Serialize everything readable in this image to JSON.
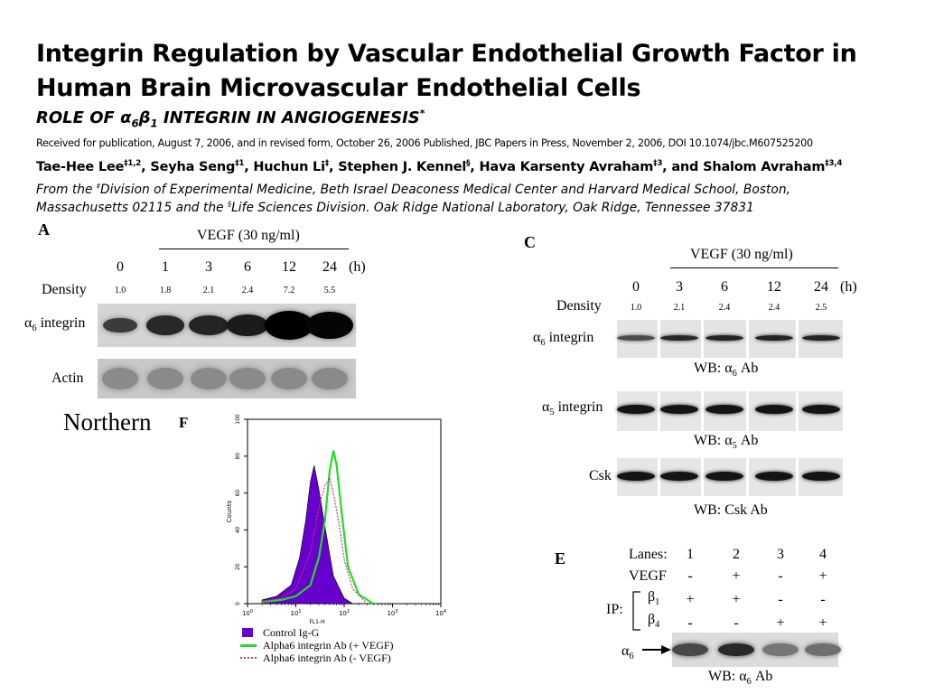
{
  "header": {
    "title_line1": "Integrin Regulation by Vascular Endothelial Growth Factor in",
    "title_line2": "Human Brain Microvascular Endothelial Cells",
    "subtitle_pre": "ROLE OF ",
    "subtitle_alpha": "α",
    "subtitle_alpha_sub": "6",
    "subtitle_beta": "β",
    "subtitle_beta_sub": "1",
    "subtitle_post": " INTEGRIN IN ANGIOGENESIS",
    "subtitle_mark": "*",
    "received": "Received for publication, August 7, 2006, and in revised form, October 26, 2006  Published, JBC Papers in Press, November 2, 2006, DOI 10.1074/jbc.M607525200",
    "authors": [
      {
        "name": "Tae-Hee Lee",
        "sup": "‡1,2",
        "sep": ", "
      },
      {
        "name": "Seyha Seng",
        "sup": "‡1",
        "sep": ", "
      },
      {
        "name": "Huchun Li",
        "sup": "‡",
        "sep": ", "
      },
      {
        "name": "Stephen J. Kennel",
        "sup": "§",
        "sep": ", "
      },
      {
        "name": "Hava Karsenty Avraham",
        "sup": "‡3",
        "sep": ", and "
      },
      {
        "name": "Shalom Avraham",
        "sup": "‡3,4",
        "sep": ""
      }
    ],
    "aff_line1_a": "From the ",
    "aff_line1_mark": "‡",
    "aff_line1_b": "Division of Experimental Medicine, Beth Israel Deaconess Medical Center and Harvard Medical School, Boston,",
    "aff_line2_a": "Massachusetts 02115 and the ",
    "aff_line2_mark": "§",
    "aff_line2_b": "Life Sciences Division. Oak Ridge National Laboratory, Oak Ridge, Tennessee 37831"
  },
  "panelA": {
    "label": "A",
    "treatment": "VEGF (30 ng/ml)",
    "times": [
      "0",
      "1",
      "3",
      "6",
      "12",
      "24"
    ],
    "unit": "(h)",
    "density_label": "Density",
    "densities": [
      "1.0",
      "1.8",
      "2.1",
      "2.4",
      "7.2",
      "5.5"
    ],
    "row1_label_alpha": "α",
    "row1_label_sub": "6",
    "row1_label_rest": " integrin",
    "row2_label": "Actin",
    "northern": "Northern",
    "band_darkness": [
      0.35,
      0.55,
      0.6,
      0.7,
      1.0,
      0.95
    ]
  },
  "panelC": {
    "label": "C",
    "treatment": "VEGF (30 ng/ml)",
    "times": [
      "0",
      "3",
      "6",
      "12",
      "24"
    ],
    "unit": "(h)",
    "density_label": "Density",
    "densities": [
      "1.0",
      "2.1",
      "2.4",
      "2.4",
      "2.5"
    ],
    "row1_label_alpha": "α",
    "row1_label_sub": "6",
    "row1_label_rest": " integrin",
    "wb1_pre": "WB: ",
    "wb1_alpha": "α",
    "wb1_sub": "6",
    "wb1_post": " Ab",
    "row2_label_alpha": "α",
    "row2_label_sub": "5",
    "row2_label_rest": " integrin",
    "wb2_pre": "WB: ",
    "wb2_alpha": "α",
    "wb2_sub": "5",
    "wb2_post": " Ab",
    "row3_label": "Csk",
    "wb3": "WB: Csk Ab"
  },
  "panelE": {
    "label": "E",
    "lanes_label": "Lanes:",
    "lanes": [
      "1",
      "2",
      "3",
      "4"
    ],
    "vegf_label": "VEGF",
    "vegf": [
      "-",
      "+",
      "-",
      "+"
    ],
    "ip_label": "IP:",
    "beta1_sym": "β",
    "beta1_sub": "1",
    "beta1": [
      "+",
      "+",
      "-",
      "-"
    ],
    "beta4_sym": "β",
    "beta4_sub": "4",
    "beta4": [
      "-",
      "-",
      "+",
      "+"
    ],
    "band_label_alpha": "α",
    "band_label_sub": "6",
    "wb_pre": "WB: ",
    "wb_alpha": "α",
    "wb_sub": "6",
    "wb_post": " Ab"
  },
  "panelF": {
    "label": "F",
    "ylabel": "Counts",
    "xlabel": "FL1-H",
    "yticks": [
      "0",
      "20",
      "40",
      "60",
      "80",
      "100"
    ],
    "xticks": [
      {
        "base": "10",
        "exp": "0"
      },
      {
        "base": "10",
        "exp": "1"
      },
      {
        "base": "10",
        "exp": "2"
      },
      {
        "base": "10",
        "exp": "3"
      },
      {
        "base": "10",
        "exp": "4"
      }
    ],
    "legend": [
      {
        "label": "Control Ig-G",
        "color": "#6600cc"
      },
      {
        "label": "Alpha6 integrin Ab (+ VEGF)",
        "color": "#22dd22"
      },
      {
        "label": "Alpha6 integrin Ab (- VEGF)",
        "color": "#cc3377"
      }
    ]
  },
  "chart_data": {
    "type": "area",
    "xscale": "log",
    "xlim": [
      1,
      10000
    ],
    "ylim": [
      0,
      100
    ],
    "xlabel": "FL1-H",
    "ylabel": "Counts",
    "series": [
      {
        "name": "Control Ig-G",
        "x": [
          2,
          4,
          8,
          12,
          16,
          20,
          24,
          30,
          40,
          60,
          100,
          150
        ],
        "y": [
          2,
          4,
          10,
          25,
          45,
          66,
          75,
          62,
          42,
          15,
          3,
          0
        ]
      },
      {
        "name": "Alpha6 integrin Ab (+ VEGF)",
        "x": [
          2,
          5,
          10,
          20,
          30,
          40,
          50,
          60,
          70,
          90,
          120,
          200,
          400
        ],
        "y": [
          1,
          2,
          4,
          10,
          25,
          45,
          72,
          83,
          75,
          48,
          20,
          5,
          0
        ]
      },
      {
        "name": "Alpha6 integrin Ab (- VEGF)",
        "x": [
          2,
          5,
          10,
          20,
          30,
          40,
          50,
          60,
          80,
          100,
          150,
          300
        ],
        "y": [
          1,
          3,
          8,
          28,
          52,
          64,
          68,
          60,
          42,
          24,
          8,
          0
        ]
      }
    ]
  }
}
